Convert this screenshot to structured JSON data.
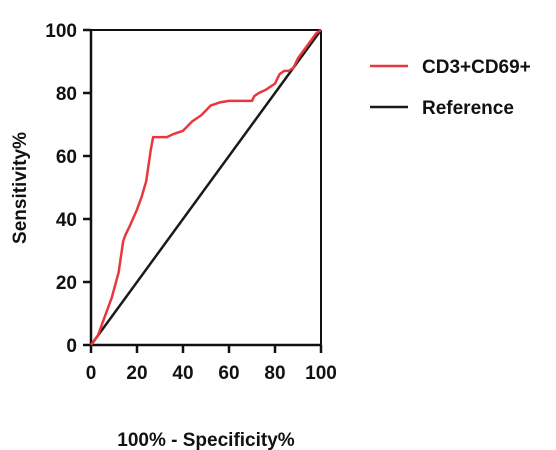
{
  "chart_data": {
    "type": "line",
    "title": "",
    "xlabel": "100% - Specificity%",
    "ylabel": "Sensitivity%",
    "xlim": [
      0,
      100
    ],
    "ylim": [
      0,
      100
    ],
    "xticks": [
      "0",
      "20",
      "40",
      "60",
      "80",
      "100"
    ],
    "yticks": [
      "0",
      "20",
      "40",
      "60",
      "80",
      "100"
    ],
    "grid": false,
    "legend_position": "right",
    "series": [
      {
        "name": "CD3+CD69+",
        "color": "#e8383d",
        "x": [
          0,
          3,
          6,
          9,
          12,
          14,
          15,
          17,
          20,
          22,
          24,
          26,
          27,
          28,
          30,
          33,
          36,
          40,
          44,
          48,
          52,
          56,
          60,
          65,
          70,
          71,
          73,
          76,
          80,
          82,
          84,
          86,
          88,
          90,
          93,
          96,
          98,
          100
        ],
        "y": [
          0,
          3,
          9,
          15,
          23,
          33,
          35,
          38,
          43,
          47,
          52,
          62,
          66,
          66,
          66,
          66,
          67,
          68,
          71,
          73,
          76,
          77,
          77.5,
          77.5,
          77.5,
          79,
          80,
          81,
          83,
          86,
          87,
          87,
          88,
          91,
          94,
          97,
          99,
          100
        ]
      },
      {
        "name": "Reference",
        "color": "#1a1a1a",
        "x": [
          0,
          100
        ],
        "y": [
          0,
          100
        ]
      }
    ]
  }
}
